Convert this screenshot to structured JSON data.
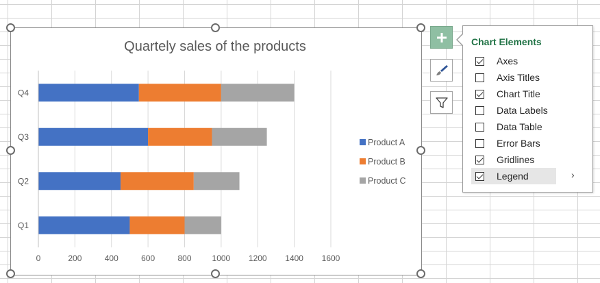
{
  "chart_data": {
    "type": "bar",
    "orientation": "horizontal",
    "stacked": true,
    "title": "Quartely sales of the products",
    "categories": [
      "Q1",
      "Q2",
      "Q3",
      "Q4"
    ],
    "series": [
      {
        "name": "Product A",
        "color": "#4472c4",
        "values": [
          500,
          450,
          600,
          550
        ]
      },
      {
        "name": "Product B",
        "color": "#ed7d31",
        "values": [
          300,
          400,
          350,
          450
        ]
      },
      {
        "name": "Product C",
        "color": "#a5a5a5",
        "values": [
          200,
          250,
          300,
          400
        ]
      }
    ],
    "xlim": [
      0,
      1600
    ],
    "xticks": [
      0,
      200,
      400,
      600,
      800,
      1000,
      1200,
      1400,
      1600
    ],
    "grid": true,
    "legend_position": "right"
  },
  "side_buttons": {
    "chart_elements_icon": "plus-icon",
    "chart_styles_icon": "paintbrush-icon",
    "chart_filters_icon": "funnel-icon"
  },
  "chart_elements_panel": {
    "title": "Chart Elements",
    "items": [
      {
        "label": "Axes",
        "checked": true
      },
      {
        "label": "Axis Titles",
        "checked": false
      },
      {
        "label": "Chart Title",
        "checked": true
      },
      {
        "label": "Data Labels",
        "checked": false
      },
      {
        "label": "Data Table",
        "checked": false
      },
      {
        "label": "Error Bars",
        "checked": false
      },
      {
        "label": "Gridlines",
        "checked": true
      },
      {
        "label": "Legend",
        "checked": true
      }
    ],
    "submenu_arrow": "›"
  }
}
